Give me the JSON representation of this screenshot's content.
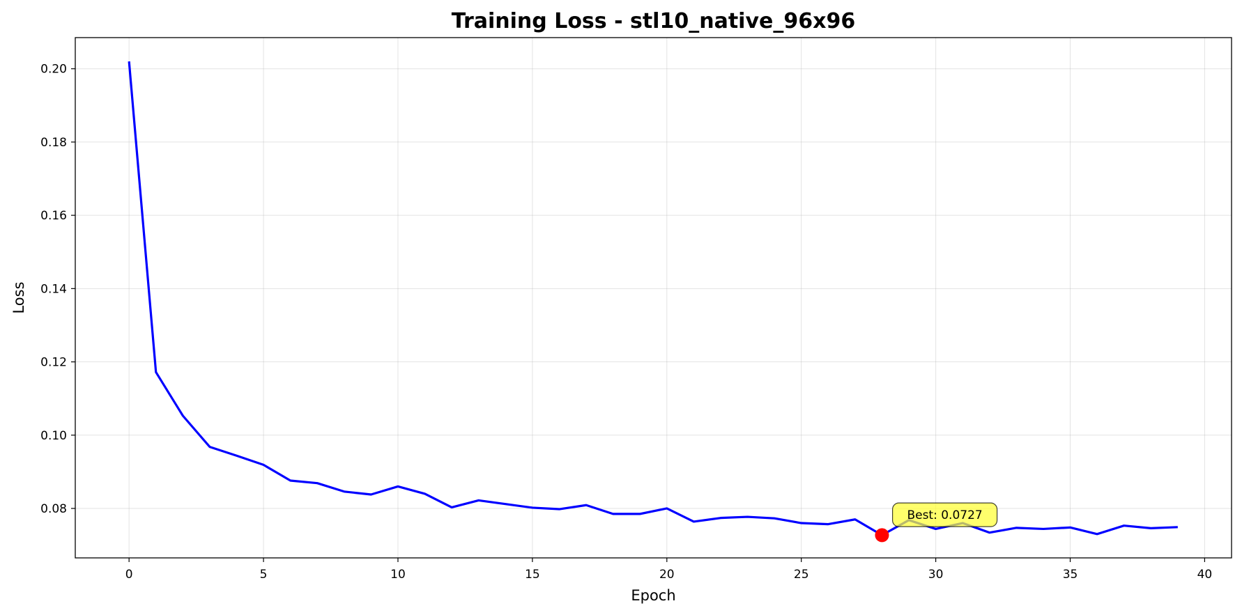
{
  "chart_data": {
    "type": "line",
    "title": "Training Loss - stl10_native_96x96",
    "xlabel": "Epoch",
    "ylabel": "Loss",
    "xlim": [
      -2,
      41
    ],
    "ylim": [
      0.0665,
      0.2085
    ],
    "grid": true,
    "x_ticks": [
      0,
      5,
      10,
      15,
      20,
      25,
      30,
      35,
      40
    ],
    "y_ticks": [
      0.08,
      0.1,
      0.12,
      0.14,
      0.16,
      0.18,
      0.2
    ],
    "y_tick_labels": [
      "0.08",
      "0.10",
      "0.12",
      "0.14",
      "0.16",
      "0.18",
      "0.20"
    ],
    "series": [
      {
        "color": "#0000ff",
        "x": [
          0,
          1,
          2,
          3,
          4,
          5,
          6,
          7,
          8,
          9,
          10,
          11,
          12,
          13,
          14,
          15,
          16,
          17,
          18,
          19,
          20,
          21,
          22,
          23,
          24,
          25,
          26,
          27,
          28,
          29,
          30,
          31,
          32,
          33,
          34,
          35,
          36,
          37,
          38,
          39
        ],
        "values": [
          0.202,
          0.1172,
          0.1053,
          0.0968,
          0.0944,
          0.0919,
          0.0876,
          0.0869,
          0.0846,
          0.0838,
          0.086,
          0.084,
          0.0803,
          0.0822,
          0.0812,
          0.0802,
          0.0798,
          0.0809,
          0.0785,
          0.0785,
          0.08,
          0.0764,
          0.0774,
          0.0777,
          0.0773,
          0.076,
          0.0757,
          0.077,
          0.0727,
          0.0768,
          0.0744,
          0.076,
          0.0734,
          0.0747,
          0.0744,
          0.0748,
          0.073,
          0.0753,
          0.0746,
          0.0749
        ]
      }
    ],
    "best_point": {
      "x": 28,
      "y": 0.0727,
      "color": "#ff0000",
      "label": "Best: 0.0727",
      "label_x": 28.6,
      "label_y": 0.0775
    },
    "annotation_box_color": "#ffff33",
    "plot_background": "#ffffff"
  }
}
